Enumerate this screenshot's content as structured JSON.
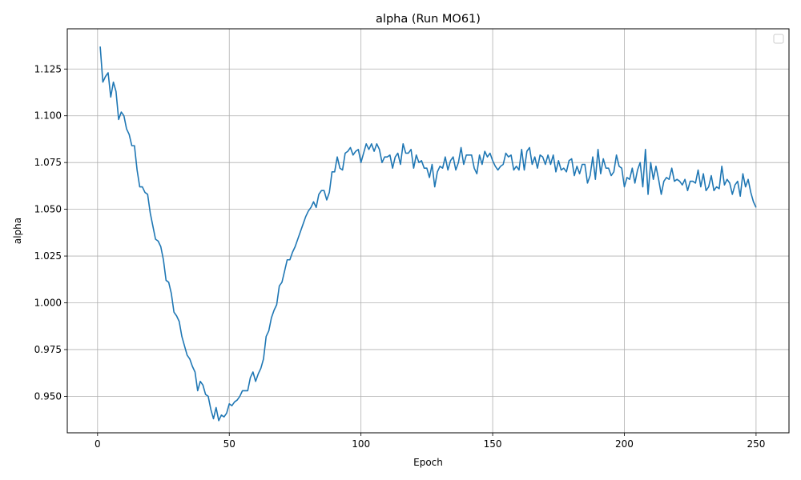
{
  "chart_data": {
    "type": "line",
    "title": "alpha (Run MO61)",
    "xlabel": "Epoch",
    "ylabel": "alpha",
    "xlim": [
      -11.5,
      262.5
    ],
    "ylim": [
      0.9305,
      1.1465
    ],
    "xticks": [
      0,
      50,
      100,
      150,
      200,
      250
    ],
    "yticks": [
      0.95,
      0.975,
      1.0,
      1.025,
      1.05,
      1.075,
      1.1,
      1.125
    ],
    "xtick_labels": [
      "0",
      "50",
      "100",
      "150",
      "200",
      "250"
    ],
    "ytick_labels": [
      "0.950",
      "0.975",
      "1.000",
      "1.025",
      "1.050",
      "1.075",
      "1.100",
      "1.125"
    ],
    "grid": true,
    "legend": "top-right, empty",
    "line_color": "#1f77b4",
    "series": [
      {
        "x": [
          1,
          2,
          3,
          4,
          5,
          6,
          7,
          8,
          9,
          10,
          11,
          12,
          13,
          14,
          15,
          16,
          17,
          18,
          19,
          20,
          21,
          22,
          23,
          24,
          25,
          26,
          27,
          28,
          29,
          30,
          31,
          32,
          33,
          34,
          35,
          36,
          37,
          38,
          39,
          40,
          41,
          42,
          43,
          44,
          45,
          46,
          47,
          48,
          49,
          50,
          51,
          52,
          53,
          54,
          55,
          56,
          57,
          58,
          59,
          60,
          61,
          62,
          63,
          64,
          65,
          66,
          67,
          68,
          69,
          70,
          71,
          72,
          73,
          74,
          75,
          76,
          77,
          78,
          79,
          80,
          81,
          82,
          83,
          84,
          85,
          86,
          87,
          88,
          89,
          90,
          91,
          92,
          93,
          94,
          95,
          96,
          97,
          98,
          99,
          100,
          101,
          102,
          103,
          104,
          105,
          106,
          107,
          108,
          109,
          110,
          111,
          112,
          113,
          114,
          115,
          116,
          117,
          118,
          119,
          120,
          121,
          122,
          123,
          124,
          125,
          126,
          127,
          128,
          129,
          130,
          131,
          132,
          133,
          134,
          135,
          136,
          137,
          138,
          139,
          140,
          141,
          142,
          143,
          144,
          145,
          146,
          147,
          148,
          149,
          150,
          151,
          152,
          153,
          154,
          155,
          156,
          157,
          158,
          159,
          160,
          161,
          162,
          163,
          164,
          165,
          166,
          167,
          168,
          169,
          170,
          171,
          172,
          173,
          174,
          175,
          176,
          177,
          178,
          179,
          180,
          181,
          182,
          183,
          184,
          185,
          186,
          187,
          188,
          189,
          190,
          191,
          192,
          193,
          194,
          195,
          196,
          197,
          198,
          199,
          200,
          201,
          202,
          203,
          204,
          205,
          206,
          207,
          208,
          209,
          210,
          211,
          212,
          213,
          214,
          215,
          216,
          217,
          218,
          219,
          220,
          221,
          222,
          223,
          224,
          225,
          226,
          227,
          228,
          229,
          230,
          231,
          232,
          233,
          234,
          235,
          236,
          237,
          238,
          239,
          240,
          241,
          242,
          243,
          244,
          245,
          246,
          247,
          248,
          249,
          250
        ],
        "y": [
          1.137,
          1.118,
          1.121,
          1.123,
          1.11,
          1.118,
          1.113,
          1.098,
          1.102,
          1.1,
          1.093,
          1.09,
          1.084,
          1.084,
          1.071,
          1.062,
          1.062,
          1.059,
          1.058,
          1.048,
          1.041,
          1.034,
          1.033,
          1.03,
          1.023,
          1.012,
          1.011,
          1.005,
          0.995,
          0.993,
          0.99,
          0.982,
          0.977,
          0.972,
          0.97,
          0.966,
          0.963,
          0.953,
          0.958,
          0.956,
          0.951,
          0.95,
          0.943,
          0.938,
          0.944,
          0.937,
          0.94,
          0.939,
          0.941,
          0.946,
          0.945,
          0.947,
          0.948,
          0.95,
          0.953,
          0.953,
          0.953,
          0.96,
          0.963,
          0.958,
          0.962,
          0.965,
          0.97,
          0.982,
          0.985,
          0.992,
          0.996,
          0.999,
          1.009,
          1.011,
          1.017,
          1.023,
          1.023,
          1.027,
          1.03,
          1.034,
          1.038,
          1.042,
          1.046,
          1.049,
          1.051,
          1.054,
          1.051,
          1.058,
          1.06,
          1.06,
          1.055,
          1.059,
          1.07,
          1.07,
          1.078,
          1.072,
          1.071,
          1.08,
          1.081,
          1.083,
          1.079,
          1.081,
          1.082,
          1.075,
          1.08,
          1.085,
          1.082,
          1.085,
          1.081,
          1.085,
          1.082,
          1.075,
          1.078,
          1.078,
          1.079,
          1.072,
          1.078,
          1.08,
          1.074,
          1.085,
          1.08,
          1.08,
          1.082,
          1.072,
          1.079,
          1.075,
          1.076,
          1.072,
          1.072,
          1.067,
          1.074,
          1.062,
          1.07,
          1.073,
          1.072,
          1.078,
          1.071,
          1.076,
          1.078,
          1.071,
          1.075,
          1.083,
          1.074,
          1.079,
          1.079,
          1.079,
          1.072,
          1.069,
          1.079,
          1.074,
          1.081,
          1.078,
          1.08,
          1.076,
          1.073,
          1.071,
          1.073,
          1.074,
          1.08,
          1.078,
          1.079,
          1.071,
          1.073,
          1.071,
          1.082,
          1.071,
          1.081,
          1.083,
          1.074,
          1.078,
          1.072,
          1.079,
          1.078,
          1.074,
          1.079,
          1.074,
          1.079,
          1.07,
          1.076,
          1.071,
          1.072,
          1.07,
          1.076,
          1.077,
          1.068,
          1.073,
          1.069,
          1.074,
          1.074,
          1.064,
          1.068,
          1.078,
          1.066,
          1.082,
          1.069,
          1.077,
          1.072,
          1.072,
          1.068,
          1.07,
          1.079,
          1.073,
          1.072,
          1.062,
          1.067,
          1.066,
          1.072,
          1.064,
          1.071,
          1.075,
          1.062,
          1.082,
          1.058,
          1.075,
          1.066,
          1.073,
          1.066,
          1.058,
          1.065,
          1.067,
          1.066,
          1.072,
          1.065,
          1.066,
          1.065,
          1.063,
          1.066,
          1.06,
          1.065,
          1.065,
          1.064,
          1.071,
          1.062,
          1.069,
          1.06,
          1.062,
          1.068,
          1.06,
          1.062,
          1.061,
          1.073,
          1.063,
          1.066,
          1.064,
          1.058,
          1.063,
          1.065,
          1.057,
          1.069,
          1.062,
          1.066,
          1.059,
          1.054,
          1.051
        ]
      }
    ]
  }
}
